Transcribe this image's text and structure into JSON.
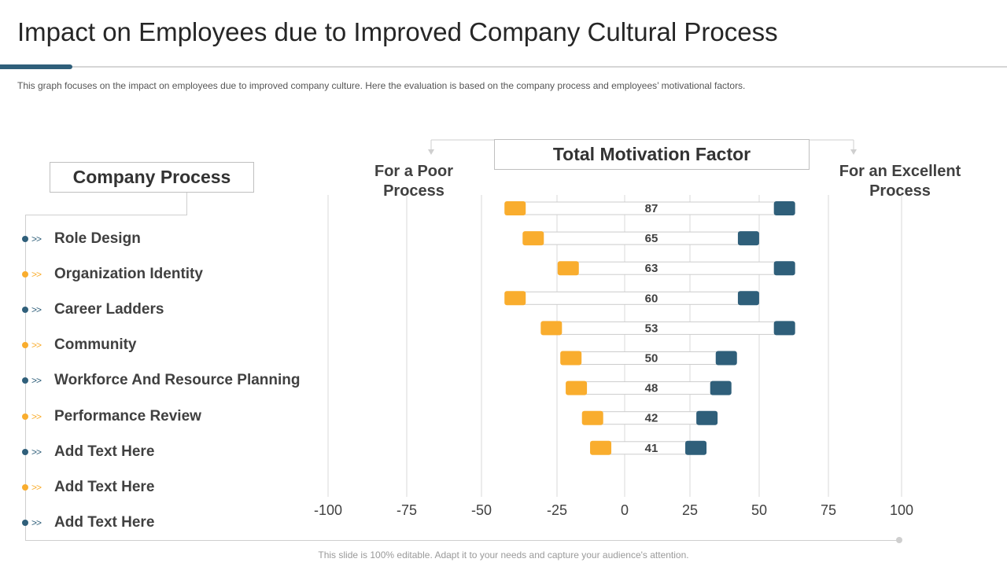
{
  "slide": {
    "title": "Impact on Employees due to Improved Company Cultural Process",
    "subtitle": "This graph focuses on the impact on employees due to improved  company culture. Here the evaluation  is based on the company process and employees’ motivational  factors.",
    "footer": "This slide is 100% editable. Adapt it to your needs and capture your audience's attention."
  },
  "left_panel": {
    "heading": "Company Process",
    "items": [
      {
        "label": "Role Design",
        "bullet": "dark"
      },
      {
        "label": "Organization Identity",
        "bullet": "orange"
      },
      {
        "label": "Career Ladders",
        "bullet": "dark"
      },
      {
        "label": "Community",
        "bullet": "orange"
      },
      {
        "label": "Workforce And Resource Planning",
        "bullet": "dark"
      },
      {
        "label": "Performance Review",
        "bullet": "orange"
      },
      {
        "label": "Add Text Here",
        "bullet": "dark"
      },
      {
        "label": "Add Text Here",
        "bullet": "orange"
      },
      {
        "label": "Add Text Here",
        "bullet": "dark"
      }
    ],
    "arrow_glyph": ">>"
  },
  "colors": {
    "dark": "#2f5f7a",
    "orange": "#f9ad2e",
    "grid": "#d9d9d9",
    "connector": "#cfcfcf"
  },
  "chart_data": {
    "type": "bar",
    "title": "Total Motivation Factor",
    "left_heading": "For a Poor Process",
    "right_heading": "For an Excellent Process",
    "x_ticks": [
      -100,
      -75,
      -50,
      -25,
      0,
      25,
      50,
      75,
      100
    ],
    "xlim": [
      -100,
      100
    ],
    "grid": true,
    "rows": [
      {
        "total": 87,
        "poor": -39,
        "excellent": 59
      },
      {
        "total": 65,
        "poor": -33,
        "excellent": 46
      },
      {
        "total": 63,
        "poor": -21,
        "excellent": 59
      },
      {
        "total": 60,
        "poor": -39,
        "excellent": 46
      },
      {
        "total": 53,
        "poor": -27,
        "excellent": 59
      },
      {
        "total": 50,
        "poor": -20,
        "excellent": 38
      },
      {
        "total": 48,
        "poor": -18,
        "excellent": 36
      },
      {
        "total": 42,
        "poor": -12,
        "excellent": 31
      },
      {
        "total": 41,
        "poor": -9,
        "excellent": 27
      }
    ]
  }
}
